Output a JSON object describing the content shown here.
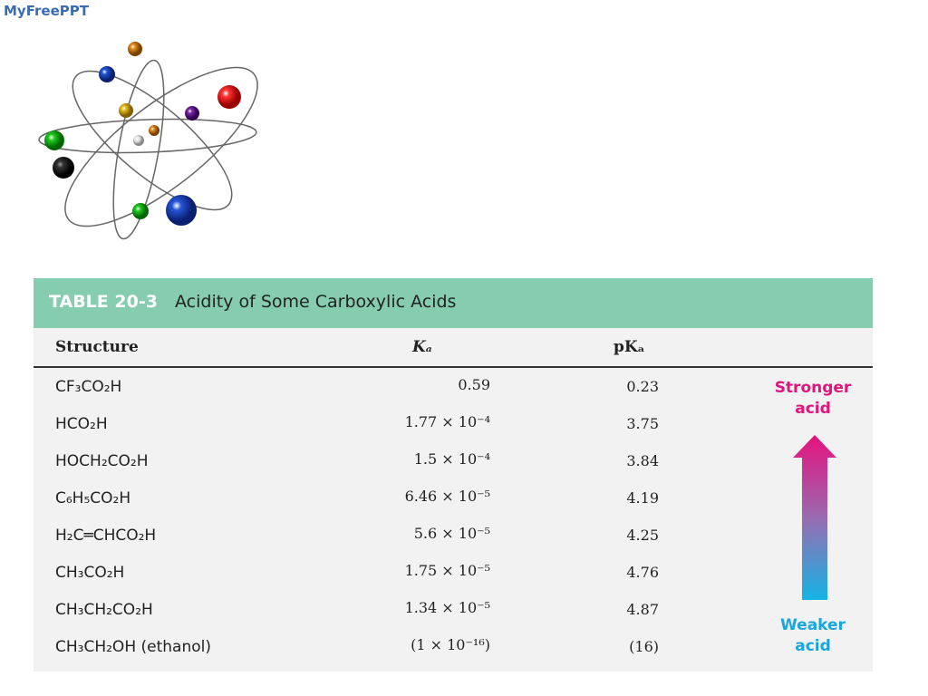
{
  "logo": "MyFreePPT",
  "table": {
    "number": "TABLE 20-3",
    "title": "Acidity of Some Carboxylic Acids",
    "columns": [
      "Structure",
      "Kₐ",
      "pKₐ"
    ],
    "rows": [
      [
        "CF₃CO₂H",
        "0.59",
        "0.23"
      ],
      [
        "HCO₂H",
        "1.77 × 10⁻⁴",
        "3.75"
      ],
      [
        "HOCH₂CO₂H",
        "1.5 × 10⁻⁴",
        "3.84"
      ],
      [
        "C₆H₅CO₂H",
        "6.46 × 10⁻⁵",
        "4.19"
      ],
      [
        "H₂C═CHCO₂H",
        "5.6 × 10⁻⁵",
        "4.25"
      ],
      [
        "CH₃CO₂H",
        "1.75 × 10⁻⁵",
        "4.76"
      ],
      [
        "CH₃CH₂CO₂H",
        "1.34 × 10⁻⁵",
        "4.87"
      ],
      [
        "CH₃CH₂OH (ethanol)",
        "(1 × 10⁻¹⁶)",
        "(16)"
      ]
    ],
    "arrow": {
      "top": "Stronger acid",
      "bottom": "Weaker acid"
    }
  }
}
